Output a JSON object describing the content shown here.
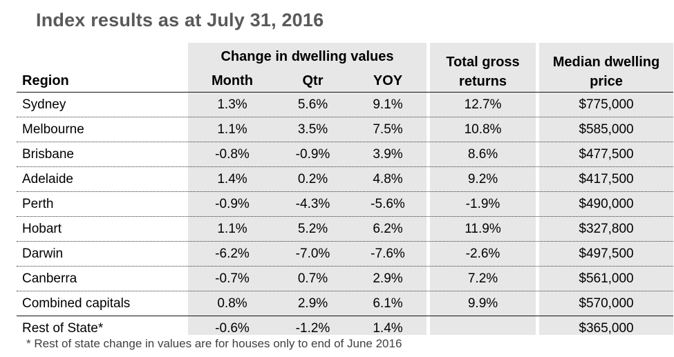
{
  "title": "Index results as at July 31, 2016",
  "headers": {
    "region": "Region",
    "change_group": "Change in dwelling values",
    "month": "Month",
    "qtr": "Qtr",
    "yoy": "YOY",
    "gross": "Total gross returns",
    "median": "Median dwelling price"
  },
  "rows": [
    {
      "region": "Sydney",
      "month": "1.3%",
      "qtr": "5.6%",
      "yoy": "9.1%",
      "gross": "12.7%",
      "median": "$775,000"
    },
    {
      "region": "Melbourne",
      "month": "1.1%",
      "qtr": "3.5%",
      "yoy": "7.5%",
      "gross": "10.8%",
      "median": "$585,000"
    },
    {
      "region": "Brisbane",
      "month": "-0.8%",
      "qtr": "-0.9%",
      "yoy": "3.9%",
      "gross": "8.6%",
      "median": "$477,500"
    },
    {
      "region": "Adelaide",
      "month": "1.4%",
      "qtr": "0.2%",
      "yoy": "4.8%",
      "gross": "9.2%",
      "median": "$417,500"
    },
    {
      "region": "Perth",
      "month": "-0.9%",
      "qtr": "-4.3%",
      "yoy": "-5.6%",
      "gross": "-1.9%",
      "median": "$490,000"
    },
    {
      "region": "Hobart",
      "month": "1.1%",
      "qtr": "5.2%",
      "yoy": "6.2%",
      "gross": "11.9%",
      "median": "$327,800"
    },
    {
      "region": "Darwin",
      "month": "-6.2%",
      "qtr": "-7.0%",
      "yoy": "-7.6%",
      "gross": "-2.6%",
      "median": "$497,500"
    },
    {
      "region": "Canberra",
      "month": "-0.7%",
      "qtr": "0.7%",
      "yoy": "2.9%",
      "gross": "7.2%",
      "median": "$561,000"
    },
    {
      "region": "Combined capitals",
      "month": "0.8%",
      "qtr": "2.9%",
      "yoy": "6.1%",
      "gross": "9.9%",
      "median": "$570,000"
    },
    {
      "region": "Rest of State*",
      "month": "-0.6%",
      "qtr": "-1.2%",
      "yoy": "1.4%",
      "gross": "",
      "median": "$365,000"
    }
  ],
  "footnote": "* Rest of state change in values are for houses only to end of June 2016"
}
